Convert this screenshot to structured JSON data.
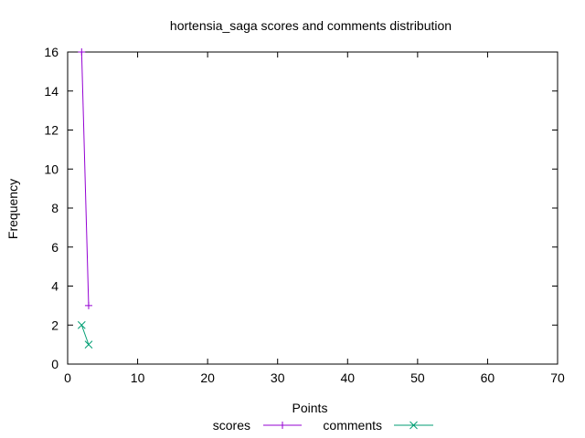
{
  "chart_data": {
    "type": "line",
    "title": "hortensia_saga scores and comments distribution",
    "xlabel": "Points",
    "ylabel": "Frequency",
    "xlim": [
      0,
      70
    ],
    "ylim": [
      0,
      16
    ],
    "x_ticks": [
      0,
      10,
      20,
      30,
      40,
      50,
      60,
      70
    ],
    "y_ticks": [
      0,
      2,
      4,
      6,
      8,
      10,
      12,
      14,
      16
    ],
    "grid": false,
    "legend_position": "bottom",
    "series": [
      {
        "name": "scores",
        "color": "#9400d3",
        "marker": "plus",
        "points": [
          [
            2,
            16
          ],
          [
            3,
            3
          ]
        ]
      },
      {
        "name": "comments",
        "color": "#009e73",
        "marker": "cross",
        "points": [
          [
            2,
            2
          ],
          [
            3,
            1
          ]
        ]
      }
    ]
  }
}
